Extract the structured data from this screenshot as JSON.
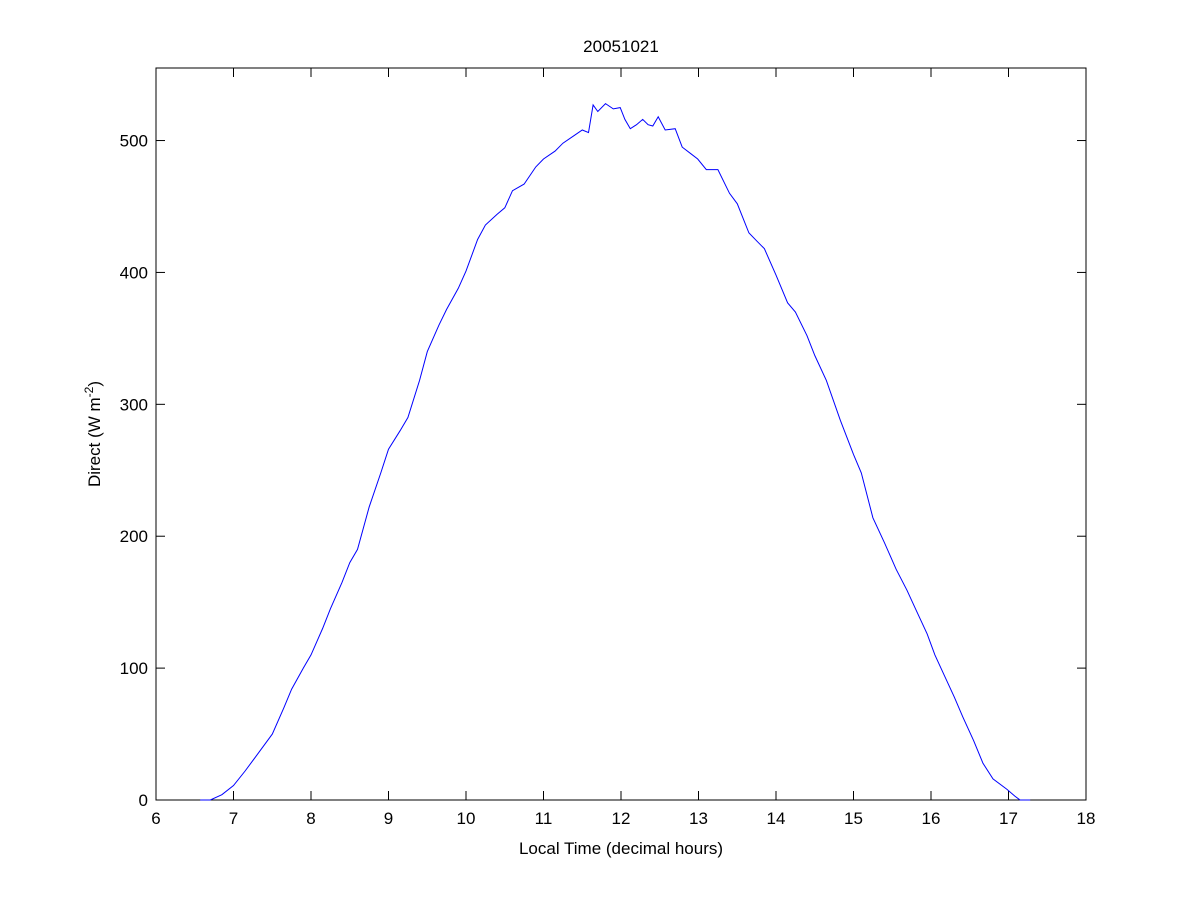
{
  "chart_data": {
    "type": "line",
    "title": "20051021",
    "xlabel": "Local Time (decimal hours)",
    "ylabel_main": "Direct (W m",
    "ylabel_sup": "-2",
    "ylabel_end": ")",
    "xlim": [
      6,
      18
    ],
    "ylim": [
      0,
      555
    ],
    "xticks": [
      6,
      7,
      8,
      9,
      10,
      11,
      12,
      13,
      14,
      15,
      16,
      17,
      18
    ],
    "yticks": [
      0,
      100,
      200,
      300,
      400,
      500
    ],
    "grid": false,
    "line_color": "#0000ff",
    "series": [
      {
        "x": [
          6.57,
          6.7,
          6.85,
          7.0,
          7.15,
          7.3,
          7.5,
          7.65,
          7.75,
          7.9,
          8.0,
          8.15,
          8.25,
          8.4,
          8.5,
          8.6,
          8.75,
          8.9,
          9.0,
          9.15,
          9.25,
          9.4,
          9.5,
          9.65,
          9.75,
          9.9,
          10.0,
          10.15,
          10.25,
          10.4,
          10.5,
          10.6,
          10.75,
          10.9,
          11.0,
          11.15,
          11.25,
          11.4,
          11.5,
          11.58,
          11.64,
          11.7,
          11.8,
          11.9,
          11.99,
          12.05,
          12.12,
          12.2,
          12.28,
          12.35,
          12.41,
          12.48,
          12.57,
          12.7,
          12.79,
          12.9,
          12.99,
          13.1,
          13.25,
          13.4,
          13.5,
          13.65,
          13.75,
          13.85,
          14.0,
          14.15,
          14.25,
          14.4,
          14.5,
          14.65,
          14.83,
          15.0,
          15.1,
          15.25,
          15.4,
          15.55,
          15.69,
          15.8,
          15.95,
          16.05,
          16.16,
          16.3,
          16.41,
          16.55,
          16.67,
          16.8,
          16.98,
          17.08,
          17.15,
          17.28
        ],
        "y": [
          0,
          0,
          4,
          11,
          22,
          34,
          50,
          70,
          84,
          100,
          110,
          130,
          145,
          165,
          180,
          190,
          222,
          248,
          266,
          280,
          290,
          318,
          340,
          360,
          372,
          388,
          401,
          425,
          436,
          444,
          449,
          462,
          467,
          480,
          486,
          492,
          498,
          504,
          508,
          506,
          527,
          522,
          528,
          524,
          525,
          516,
          509,
          512,
          516,
          512,
          511,
          518,
          508,
          509,
          495,
          490,
          486,
          478,
          478,
          460,
          452,
          430,
          424,
          418,
          398,
          377,
          370,
          352,
          337,
          318,
          288,
          262,
          248,
          214,
          195,
          175,
          159,
          145,
          126,
          110,
          96,
          78,
          63,
          45,
          28,
          16,
          8,
          3,
          0,
          0
        ]
      }
    ]
  }
}
